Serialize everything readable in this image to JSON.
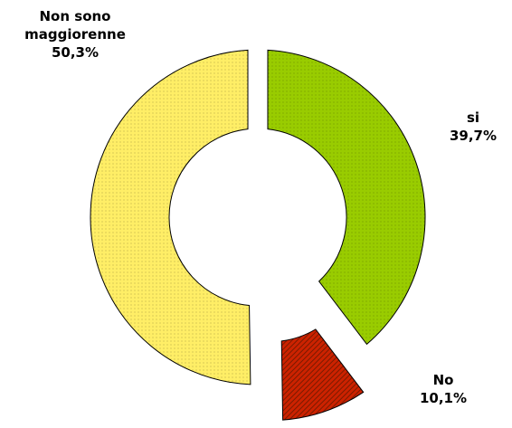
{
  "chart_data": {
    "type": "pie",
    "variant": "donut",
    "slices": [
      {
        "name": "si",
        "label_lines": [
          "si"
        ],
        "value_label": "39,7%",
        "value": 39.7,
        "color": "#99cc00",
        "pattern": "dots"
      },
      {
        "name": "No",
        "label_lines": [
          "No"
        ],
        "value_label": "10,1%",
        "value": 10.1,
        "color": "#993300",
        "pattern": "diagonal",
        "exploded": true
      },
      {
        "name": "Non sono maggiorenne",
        "label_lines": [
          "Non sono",
          "maggiorenne"
        ],
        "value_label": "50,3%",
        "value": 50.3,
        "color": "#ffee66",
        "pattern": "dots"
      }
    ],
    "legend": "none"
  }
}
